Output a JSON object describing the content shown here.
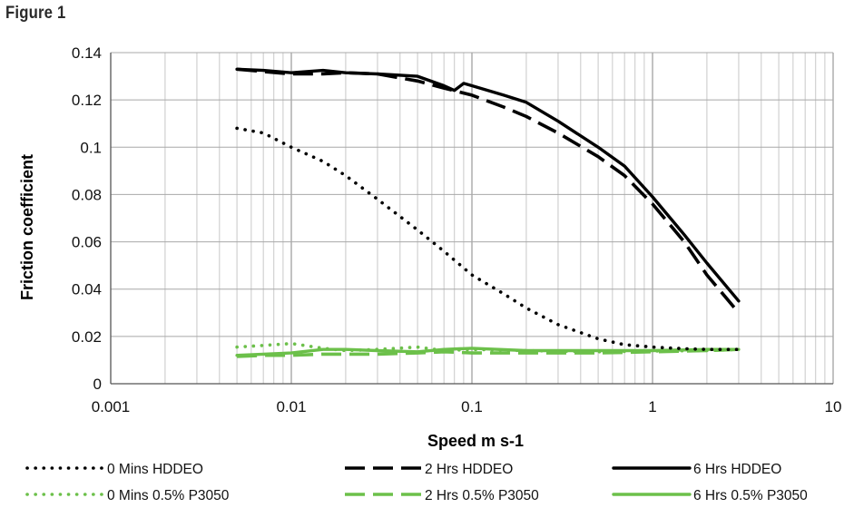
{
  "figure_label": "Figure 1",
  "chart_data": {
    "type": "line",
    "title": "",
    "xlabel": "Speed m s-1",
    "ylabel": "Friction coefficient",
    "x_scale": "log",
    "xlim": [
      0.001,
      10
    ],
    "ylim": [
      0,
      0.14
    ],
    "x_ticks": [
      {
        "value": 0.001,
        "label": "0.001"
      },
      {
        "value": 0.01,
        "label": "0.01"
      },
      {
        "value": 0.1,
        "label": "0.1"
      },
      {
        "value": 1,
        "label": "1"
      },
      {
        "value": 10,
        "label": "10"
      }
    ],
    "y_ticks": [
      {
        "value": 0,
        "label": "0"
      },
      {
        "value": 0.02,
        "label": "0.02"
      },
      {
        "value": 0.04,
        "label": "0.04"
      },
      {
        "value": 0.06,
        "label": "0.06"
      },
      {
        "value": 0.08,
        "label": "0.08"
      },
      {
        "value": 0.1,
        "label": "0.1"
      },
      {
        "value": 0.12,
        "label": "0.12"
      },
      {
        "value": 0.14,
        "label": "0.14"
      }
    ],
    "grid": true,
    "legend_position": "bottom",
    "series": [
      {
        "name": "0 Mins HDDEO",
        "color": "#000000",
        "style": "dotted",
        "points": [
          [
            0.005,
            0.108
          ],
          [
            0.007,
            0.106
          ],
          [
            0.01,
            0.1
          ],
          [
            0.015,
            0.094
          ],
          [
            0.02,
            0.088
          ],
          [
            0.03,
            0.078
          ],
          [
            0.05,
            0.065
          ],
          [
            0.07,
            0.056
          ],
          [
            0.1,
            0.046
          ],
          [
            0.15,
            0.038
          ],
          [
            0.2,
            0.032
          ],
          [
            0.3,
            0.025
          ],
          [
            0.5,
            0.019
          ],
          [
            0.7,
            0.0165
          ],
          [
            1,
            0.0155
          ],
          [
            1.5,
            0.0148
          ],
          [
            2,
            0.0145
          ],
          [
            3,
            0.0145
          ]
        ]
      },
      {
        "name": "2 Hrs HDDEO",
        "color": "#000000",
        "style": "dashed",
        "points": [
          [
            0.005,
            0.133
          ],
          [
            0.007,
            0.132
          ],
          [
            0.01,
            0.131
          ],
          [
            0.015,
            0.131
          ],
          [
            0.02,
            0.1315
          ],
          [
            0.03,
            0.131
          ],
          [
            0.05,
            0.128
          ],
          [
            0.07,
            0.125
          ],
          [
            0.1,
            0.122
          ],
          [
            0.15,
            0.117
          ],
          [
            0.2,
            0.113
          ],
          [
            0.3,
            0.106
          ],
          [
            0.5,
            0.096
          ],
          [
            0.7,
            0.088
          ],
          [
            1,
            0.076
          ],
          [
            1.5,
            0.06
          ],
          [
            2,
            0.046
          ],
          [
            3,
            0.03
          ]
        ]
      },
      {
        "name": "6 Hrs HDDEO",
        "color": "#000000",
        "style": "solid",
        "points": [
          [
            0.005,
            0.133
          ],
          [
            0.007,
            0.1325
          ],
          [
            0.01,
            0.1315
          ],
          [
            0.015,
            0.1325
          ],
          [
            0.02,
            0.1315
          ],
          [
            0.03,
            0.131
          ],
          [
            0.05,
            0.13
          ],
          [
            0.07,
            0.126
          ],
          [
            0.08,
            0.124
          ],
          [
            0.09,
            0.127
          ],
          [
            0.1,
            0.126
          ],
          [
            0.15,
            0.122
          ],
          [
            0.2,
            0.119
          ],
          [
            0.3,
            0.111
          ],
          [
            0.5,
            0.1
          ],
          [
            0.7,
            0.092
          ],
          [
            1,
            0.079
          ],
          [
            1.5,
            0.063
          ],
          [
            2,
            0.051
          ],
          [
            3,
            0.035
          ]
        ]
      },
      {
        "name": "0 Mins 0.5% P3050",
        "color": "#6cc04a",
        "style": "dotted",
        "points": [
          [
            0.005,
            0.0155
          ],
          [
            0.007,
            0.0162
          ],
          [
            0.01,
            0.017
          ],
          [
            0.015,
            0.015
          ],
          [
            0.02,
            0.014
          ],
          [
            0.03,
            0.0145
          ],
          [
            0.05,
            0.0155
          ],
          [
            0.07,
            0.014
          ],
          [
            0.1,
            0.0145
          ],
          [
            0.2,
            0.014
          ],
          [
            0.5,
            0.0135
          ],
          [
            1,
            0.0138
          ],
          [
            2,
            0.014
          ],
          [
            3,
            0.0145
          ]
        ]
      },
      {
        "name": "2 Hrs 0.5% P3050",
        "color": "#6cc04a",
        "style": "dashed",
        "points": [
          [
            0.005,
            0.0115
          ],
          [
            0.007,
            0.012
          ],
          [
            0.01,
            0.012
          ],
          [
            0.015,
            0.0125
          ],
          [
            0.02,
            0.0125
          ],
          [
            0.03,
            0.0125
          ],
          [
            0.05,
            0.013
          ],
          [
            0.07,
            0.0135
          ],
          [
            0.1,
            0.013
          ],
          [
            0.2,
            0.013
          ],
          [
            0.5,
            0.013
          ],
          [
            1,
            0.0135
          ],
          [
            2,
            0.014
          ],
          [
            3,
            0.0145
          ]
        ]
      },
      {
        "name": "6 Hrs 0.5% P3050",
        "color": "#6cc04a",
        "style": "solid",
        "points": [
          [
            0.005,
            0.012
          ],
          [
            0.007,
            0.0125
          ],
          [
            0.01,
            0.013
          ],
          [
            0.015,
            0.0145
          ],
          [
            0.02,
            0.0145
          ],
          [
            0.03,
            0.014
          ],
          [
            0.05,
            0.0135
          ],
          [
            0.07,
            0.0145
          ],
          [
            0.1,
            0.015
          ],
          [
            0.2,
            0.014
          ],
          [
            0.5,
            0.014
          ],
          [
            1,
            0.014
          ],
          [
            2,
            0.0145
          ],
          [
            3,
            0.0145
          ]
        ]
      }
    ]
  }
}
